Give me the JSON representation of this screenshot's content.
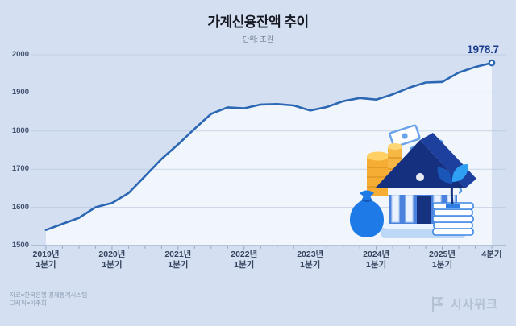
{
  "header": {
    "title": "가계신용잔액 추이",
    "unit_label": "단위: 조원"
  },
  "chart_data": {
    "type": "area",
    "title": "가계신용잔액 추이",
    "unit": "조원",
    "x": [
      "2019Q1",
      "2019Q2",
      "2019Q3",
      "2019Q4",
      "2020Q1",
      "2020Q2",
      "2020Q3",
      "2020Q4",
      "2021Q1",
      "2021Q2",
      "2021Q3",
      "2021Q4",
      "2022Q1",
      "2022Q2",
      "2022Q3",
      "2022Q4",
      "2023Q1",
      "2023Q2",
      "2023Q3",
      "2023Q4",
      "2024Q1",
      "2024Q2",
      "2024Q3",
      "2024Q4",
      "2025Q1",
      "2025Q2",
      "2025Q3",
      "2025Q4"
    ],
    "values": [
      1540.7,
      1556.7,
      1572.5,
      1600.3,
      1611.3,
      1637.3,
      1681.8,
      1726.7,
      1765.0,
      1805.8,
      1844.9,
      1862.1,
      1859.4,
      1869.4,
      1870.6,
      1867.0,
      1853.9,
      1862.8,
      1878.3,
      1886.4,
      1882.5,
      1896.2,
      1913.8,
      1927.3,
      1928.7,
      1953.3,
      1968.0,
      1978.7
    ],
    "ylim": [
      1500,
      2000
    ],
    "yticks": [
      1500,
      1600,
      1700,
      1800,
      1900,
      2000
    ],
    "x_tick_labels": [
      {
        "index": 0,
        "line1": "2019년",
        "line2": "1분기"
      },
      {
        "index": 4,
        "line1": "2020년",
        "line2": "1분기"
      },
      {
        "index": 8,
        "line1": "2021년",
        "line2": "1분기"
      },
      {
        "index": 12,
        "line1": "2022년",
        "line2": "1분기"
      },
      {
        "index": 16,
        "line1": "2023년",
        "line2": "1분기"
      },
      {
        "index": 20,
        "line1": "2024년",
        "line2": "1분기"
      },
      {
        "index": 24,
        "line1": "2025년",
        "line2": "1분기"
      },
      {
        "index": 27,
        "line1": "4분기",
        "line2": ""
      }
    ],
    "end_label": "1978.7",
    "grid": true,
    "legend": false
  },
  "footer": {
    "source": "자료=한국은행 경제통계시스템",
    "credit": "그래픽=이주희"
  },
  "logo": {
    "text": "시사위크"
  },
  "colors": {
    "background": "#d4e0f2",
    "line": "#2b67b3",
    "area": "#f3f7fd",
    "grid": "#b4c3dc",
    "axis": "#93a7c6",
    "end_label": "#1c3d8f"
  }
}
